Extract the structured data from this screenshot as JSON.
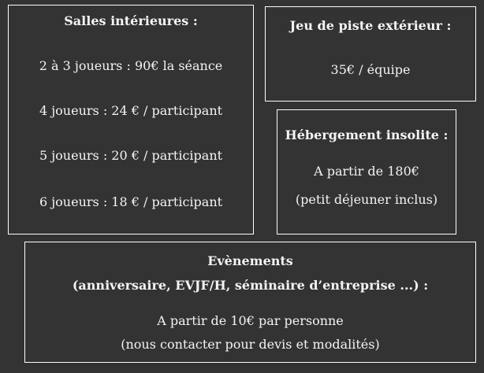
{
  "indoor": {
    "title": "Salles intérieures :",
    "rates": [
      "2 à 3 joueurs : 90€ la séance",
      "4 joueurs : 24 € / participant",
      "5 joueurs : 20 € / participant",
      "6 joueurs : 18 € / participant"
    ]
  },
  "outdoor": {
    "title": "Jeu de piste extérieur :",
    "price": "35€ / équipe"
  },
  "lodging": {
    "title": "Hébergement insolite :",
    "price": "A partir de 180€",
    "note": "(petit déjeuner inclus)"
  },
  "events": {
    "title": "Evènements",
    "subtitle": "(anniversaire, EVJF/H, séminaire d’entreprise ...) :",
    "price": "A partir de 10€ par personne",
    "note": "(nous contacter pour devis et modalités)"
  }
}
